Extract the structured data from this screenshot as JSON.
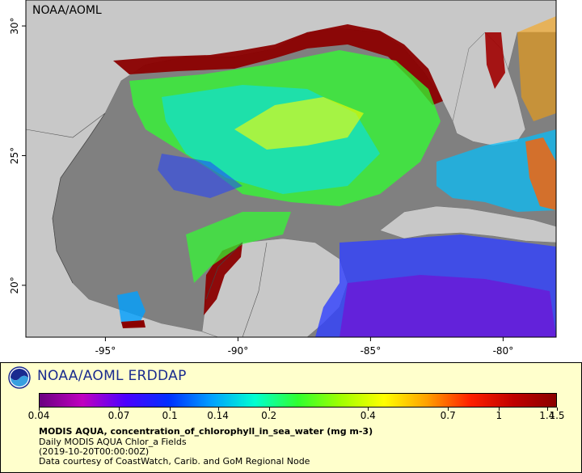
{
  "map": {
    "watermark": "NOAA/AOML",
    "lon_ticks": [
      {
        "lon": -95,
        "label": "-95°"
      },
      {
        "lon": -90,
        "label": "-90°"
      },
      {
        "lon": -85,
        "label": "-85°"
      },
      {
        "lon": -80,
        "label": "-80°"
      }
    ],
    "lat_ticks": [
      {
        "lat": 20,
        "label": "20°"
      },
      {
        "lat": 25,
        "label": "25°"
      },
      {
        "lat": 30,
        "label": "30°"
      }
    ],
    "extent": {
      "lon_min": -98,
      "lon_max": -78,
      "lat_min": 18,
      "lat_max": 31
    },
    "colors": {
      "land": "#c8c8c8",
      "water_nodata": "#808080",
      "border": "#555555"
    }
  },
  "legend": {
    "brand": "NOAA/AOML ERDDAP",
    "colorbar_ticks": [
      "0.04",
      "0.07",
      "0.1",
      "0.14",
      "0.2",
      "0.4",
      "0.7",
      "1",
      "1.4",
      "1.5"
    ],
    "colorbar_min": 0.04,
    "colorbar_max": 1.5,
    "scale": "log",
    "palette": [
      "#6a0080",
      "#c000c0",
      "#4b00ff",
      "#0030ff",
      "#00a0ff",
      "#00ffd0",
      "#30ff30",
      "#a0ff00",
      "#ffff00",
      "#ffa000",
      "#ff2000",
      "#c00000",
      "#8b0000"
    ],
    "variable_title": "MODIS AQUA, concentration_of_chlorophyll_in_sea_water (mg m-3)",
    "lines": [
      "Daily MODIS AQUA Chlor_a Fields",
      "(2019-10-20T00:00:00Z)",
      "Data courtesy of CoastWatch, Carib. and GoM Regional Node"
    ]
  }
}
